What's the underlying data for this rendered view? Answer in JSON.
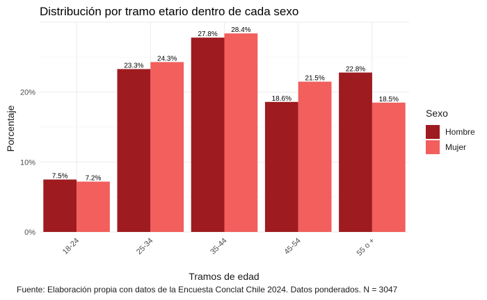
{
  "chart_data": {
    "type": "bar",
    "title": "Distribución por tramo etario dentro de cada sexo",
    "xlabel": "Tramos de edad",
    "ylabel": "Porcentaje",
    "categories": [
      "18-24",
      "25-34",
      "35-44",
      "45-54",
      "55 o +"
    ],
    "series": [
      {
        "name": "Hombre",
        "values": [
          7.5,
          23.3,
          27.8,
          18.6,
          22.8
        ],
        "labels": [
          "7.5%",
          "23.3%",
          "27.8%",
          "18.6%",
          "22.8%"
        ],
        "color": "#9e1b1f"
      },
      {
        "name": "Mujer",
        "values": [
          7.2,
          24.3,
          28.4,
          21.5,
          18.5
        ],
        "labels": [
          "7.2%",
          "24.3%",
          "28.4%",
          "21.5%",
          "18.5%"
        ],
        "color": "#f25f5c"
      }
    ],
    "ylim": [
      0,
      30
    ],
    "yticks": [
      0,
      10,
      20
    ],
    "ytick_labels": [
      "0%",
      "10%",
      "20%"
    ],
    "grid": true,
    "legend": {
      "title": "Sexo",
      "position": "right"
    },
    "caption": "Fuente: Elaboración propia con datos de la Encuesta Conclat Chile 2024. Datos ponderados. N = 3047"
  }
}
